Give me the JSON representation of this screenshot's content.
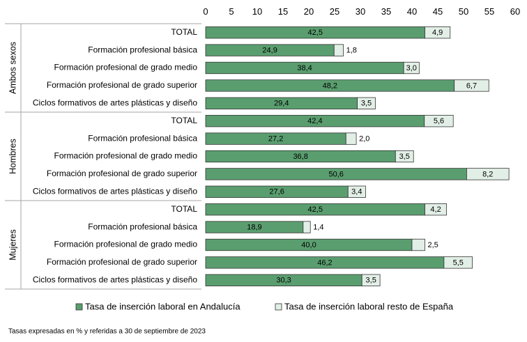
{
  "chart_data": {
    "type": "bar",
    "orientation": "horizontal",
    "stacked": true,
    "title": "",
    "xlim": [
      0,
      60
    ],
    "x_ticks": [
      0,
      5,
      10,
      15,
      20,
      25,
      30,
      35,
      40,
      45,
      50,
      55,
      60
    ],
    "x_tick_labels": [
      "0",
      "5",
      "10",
      "15",
      "20",
      "25",
      "30",
      "35",
      "40",
      "45",
      "50",
      "55",
      "60"
    ],
    "grid": false,
    "legend_position": "bottom",
    "colors": {
      "andalucia": "#5a9e6f",
      "resto": "#e2efe6",
      "border": "#333333",
      "divider": "#a6a6a6"
    },
    "groups": [
      {
        "name": "Ambos sexos",
        "categories": [
          "TOTAL",
          "Formación profesional básica",
          "Formación profesional de grado medio",
          "Formación profesional de grado superior",
          "Ciclos formativos de artes plásticas y diseño"
        ],
        "andalucia": [
          42.5,
          24.9,
          38.4,
          48.2,
          29.4
        ],
        "resto": [
          4.9,
          1.8,
          3.0,
          6.7,
          3.5
        ],
        "andalucia_labels": [
          "42,5",
          "24,9",
          "38,4",
          "48,2",
          "29,4"
        ],
        "resto_labels": [
          "4,9",
          "1,8",
          "3,0",
          "6,7",
          "3,5"
        ]
      },
      {
        "name": "Hombres",
        "categories": [
          "TOTAL",
          "Formación profesional básica",
          "Formación profesional de grado medio",
          "Formación profesional de grado superior",
          "Ciclos formativos de artes plásticas y diseño"
        ],
        "andalucia": [
          42.4,
          27.2,
          36.8,
          50.6,
          27.6
        ],
        "resto": [
          5.6,
          2.0,
          3.5,
          8.2,
          3.4
        ],
        "andalucia_labels": [
          "42,4",
          "27,2",
          "36,8",
          "50,6",
          "27,6"
        ],
        "resto_labels": [
          "5,6",
          "2,0",
          "3,5",
          "8,2",
          "3,4"
        ]
      },
      {
        "name": "Mujeres",
        "categories": [
          "TOTAL",
          "Formación profesional básica",
          "Formación profesional de grado medio",
          "Formación profesional de grado superior",
          "Ciclos formativos de artes plásticas y diseño"
        ],
        "andalucia": [
          42.5,
          18.9,
          40.0,
          46.2,
          30.3
        ],
        "resto": [
          4.2,
          1.4,
          2.5,
          5.5,
          3.5
        ],
        "andalucia_labels": [
          "42,5",
          "18,9",
          "40,0",
          "46,2",
          "30,3"
        ],
        "resto_labels": [
          "4,2",
          "1,4",
          "2,5",
          "5,5",
          "3,5"
        ]
      }
    ],
    "series": [
      {
        "name": "Tasa de inserción laboral en Andalucía",
        "key": "andalucia"
      },
      {
        "name": "Tasa de inserción laboral resto de España",
        "key": "resto"
      }
    ],
    "note": "Tasas expresadas en % y referidas a 30 de septiembre de 2023"
  }
}
